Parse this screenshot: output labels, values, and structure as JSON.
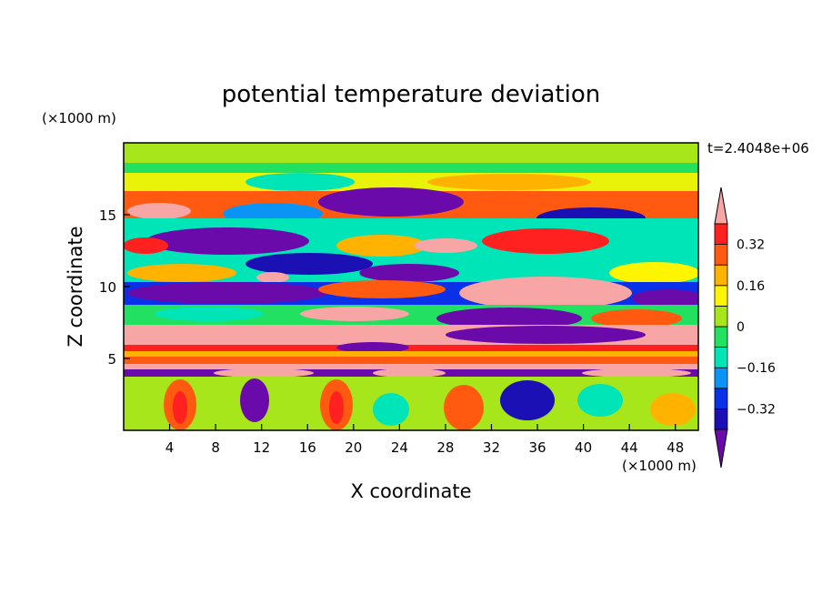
{
  "chart_data": {
    "type": "heatmap",
    "title": "potential temperature deviation",
    "xlabel": "X coordinate",
    "ylabel": "Z coordinate",
    "x_unit": "(×1000 m)",
    "y_unit": "(×1000 m)",
    "time_label": "t=2.4048e+06",
    "xlim": [
      0,
      50
    ],
    "ylim": [
      0,
      20
    ],
    "x_ticks": [
      4,
      8,
      12,
      16,
      20,
      24,
      28,
      32,
      36,
      40,
      44,
      48
    ],
    "y_ticks": [
      5,
      10,
      15
    ],
    "colorbar": {
      "levels": [
        -0.4,
        -0.32,
        -0.24,
        -0.16,
        -0.08,
        0,
        0.08,
        0.16,
        0.24,
        0.32,
        0.4
      ],
      "labels": [
        "0.32",
        "0.16",
        "0",
        "−0.16",
        "−0.32"
      ],
      "label_values": [
        0.32,
        0.16,
        0,
        -0.16,
        -0.32
      ],
      "colors": [
        "#6a0aab",
        "#1a10b4",
        "#0a30e8",
        "#0b94f5",
        "#00e5b8",
        "#22e060",
        "#a6e61a",
        "#fff500",
        "#ffb300",
        "#ff5a10",
        "#ff2020",
        "#f8a5a5"
      ],
      "extend": "both"
    }
  }
}
